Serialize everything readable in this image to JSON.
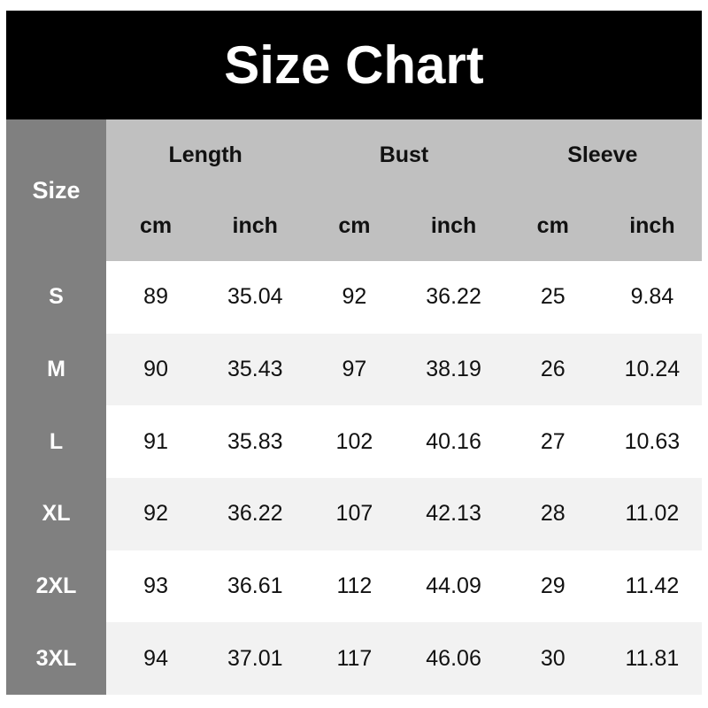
{
  "title": "Size Chart",
  "header": {
    "size_label": "Size",
    "groups": [
      "Length",
      "Bust",
      "Sleeve"
    ],
    "units": [
      "cm",
      "inch",
      "cm",
      "inch",
      "cm",
      "inch"
    ]
  },
  "rows": [
    {
      "size": "S",
      "values": [
        "89",
        "35.04",
        "92",
        "36.22",
        "25",
        "9.84"
      ]
    },
    {
      "size": "M",
      "values": [
        "90",
        "35.43",
        "97",
        "38.19",
        "26",
        "10.24"
      ]
    },
    {
      "size": "L",
      "values": [
        "91",
        "35.83",
        "102",
        "40.16",
        "27",
        "10.63"
      ]
    },
    {
      "size": "XL",
      "values": [
        "92",
        "36.22",
        "107",
        "42.13",
        "28",
        "11.02"
      ]
    },
    {
      "size": "2XL",
      "values": [
        "93",
        "36.61",
        "112",
        "44.09",
        "29",
        "11.42"
      ]
    },
    {
      "size": "3XL",
      "values": [
        "94",
        "37.01",
        "117",
        "46.06",
        "30",
        "11.81"
      ]
    }
  ],
  "colors": {
    "title_bg": "#000000",
    "size_col_bg": "#808080",
    "header_bg": "#c0c0c0",
    "alt_row_bg": "#f2f2f2"
  }
}
